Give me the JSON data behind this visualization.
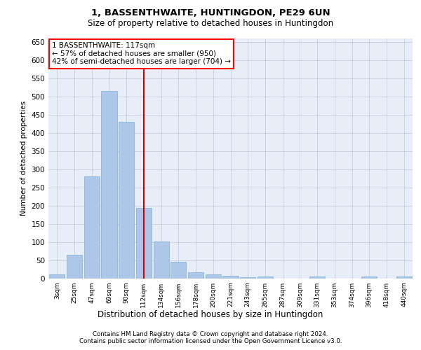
{
  "title": "1, BASSENTHWAITE, HUNTINGDON, PE29 6UN",
  "subtitle": "Size of property relative to detached houses in Huntingdon",
  "xlabel": "Distribution of detached houses by size in Huntingdon",
  "ylabel": "Number of detached properties",
  "footnote1": "Contains HM Land Registry data © Crown copyright and database right 2024.",
  "footnote2": "Contains public sector information licensed under the Open Government Licence v3.0.",
  "annotation_line1": "1 BASSENTHWAITE: 117sqm",
  "annotation_line2": "← 57% of detached houses are smaller (950)",
  "annotation_line3": "42% of semi-detached houses are larger (704) →",
  "bar_color": "#aec6e8",
  "bar_edge_color": "#7aafd4",
  "red_line_color": "#cc0000",
  "background_color": "#e8eef8",
  "categories": [
    "3sqm",
    "25sqm",
    "47sqm",
    "69sqm",
    "90sqm",
    "112sqm",
    "134sqm",
    "156sqm",
    "178sqm",
    "200sqm",
    "221sqm",
    "243sqm",
    "265sqm",
    "287sqm",
    "309sqm",
    "331sqm",
    "353sqm",
    "374sqm",
    "396sqm",
    "418sqm",
    "440sqm"
  ],
  "values": [
    10,
    65,
    280,
    515,
    430,
    193,
    102,
    46,
    17,
    10,
    6,
    2,
    5,
    0,
    0,
    4,
    0,
    0,
    5,
    0,
    5
  ],
  "ylim": [
    0,
    660
  ],
  "yticks": [
    0,
    50,
    100,
    150,
    200,
    250,
    300,
    350,
    400,
    450,
    500,
    550,
    600,
    650
  ]
}
